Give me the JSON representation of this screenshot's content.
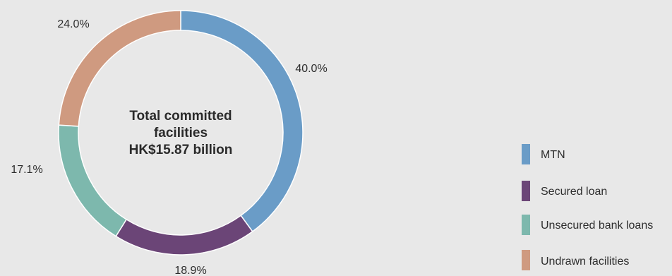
{
  "chart_data": {
    "type": "pie",
    "variant": "donut",
    "center_label": [
      "Total committed",
      "facilities",
      "HK$15.87 billion"
    ],
    "categories": [
      "MTN",
      "Secured loan",
      "Unsecured bank loans",
      "Undrawn facilities"
    ],
    "values": [
      40.0,
      18.9,
      17.1,
      24.0
    ],
    "value_labels": [
      "40.0%",
      "18.9%",
      "17.1%",
      "24.0%"
    ],
    "colors": [
      "#6a9cc7",
      "#6b4577",
      "#7db8ad",
      "#cf9a80"
    ],
    "legend_position": "right"
  }
}
